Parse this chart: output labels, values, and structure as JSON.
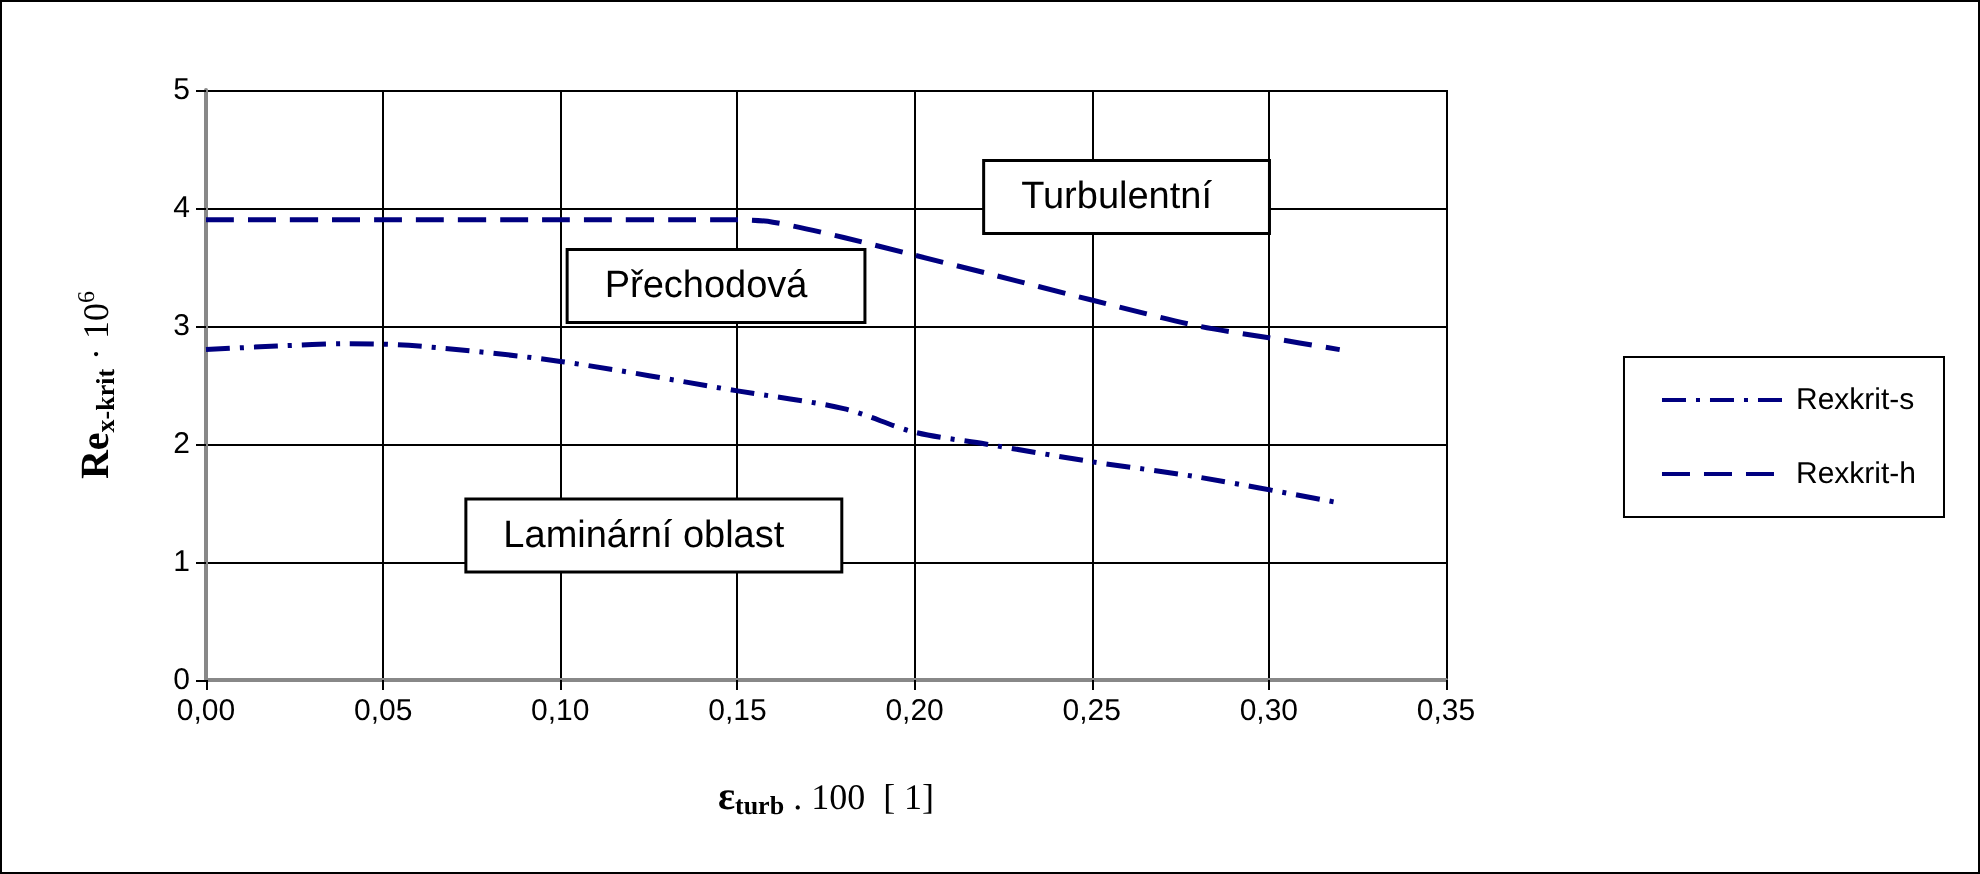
{
  "chart_data": {
    "type": "line",
    "xlabel": "ε$_{turb}$ . 100  [ 1]",
    "ylabel": "Re$_{x-krit}$ · 10$^{6}$",
    "xlim": [
      0,
      0.35
    ],
    "xticks": [
      {
        "value": 0,
        "label": "0,00"
      },
      {
        "value": 0.05,
        "label": "0,05"
      },
      {
        "value": 0.1,
        "label": "0,10"
      },
      {
        "value": 0.15,
        "label": "0,15"
      },
      {
        "value": 0.2,
        "label": "0,20"
      },
      {
        "value": 0.25,
        "label": "0,25"
      },
      {
        "value": 0.3,
        "label": "0,30"
      },
      {
        "value": 0.35,
        "label": "0,35"
      }
    ],
    "ylim": [
      0,
      5
    ],
    "yticks": [
      0,
      1,
      2,
      3,
      4,
      5
    ],
    "grid": true,
    "legend": "right",
    "marker": "none",
    "series": [
      {
        "name": "Rexkrit-s",
        "color": "#000080",
        "line_style": "dashdot",
        "x": [
          0,
          0.02,
          0.04,
          0.06,
          0.1,
          0.15,
          0.18,
          0.2,
          0.22,
          0.25,
          0.28,
          0.32
        ],
        "values": [
          2.8,
          2.83,
          2.85,
          2.83,
          2.7,
          2.45,
          2.3,
          2.1,
          2.0,
          1.85,
          1.72,
          1.5
        ]
      },
      {
        "name": "Rexkrit-h",
        "color": "#000080",
        "line_style": "dashed",
        "x": [
          0,
          0.05,
          0.1,
          0.15,
          0.16,
          0.18,
          0.2,
          0.22,
          0.25,
          0.28,
          0.3,
          0.32
        ],
        "values": [
          3.9,
          3.9,
          3.9,
          3.9,
          3.88,
          3.75,
          3.6,
          3.45,
          3.22,
          3.0,
          2.9,
          2.8
        ]
      }
    ],
    "annotations": [
      "Turbulentní",
      "Přechodová",
      "Laminární oblast"
    ]
  }
}
